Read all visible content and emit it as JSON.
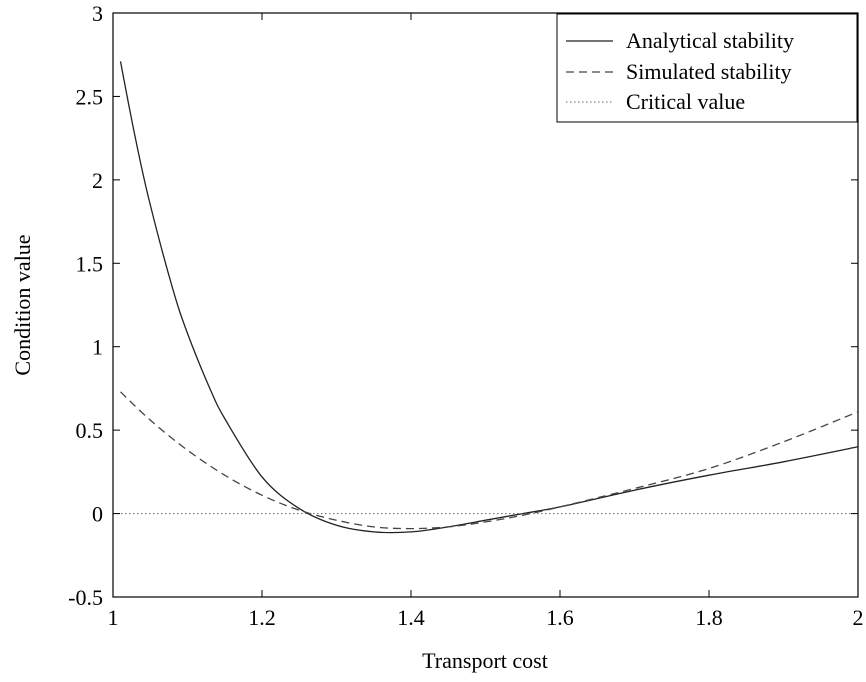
{
  "chart_data": {
    "type": "line",
    "xlabel": "Transport cost",
    "ylabel": "Condition value",
    "xlim": [
      1,
      2
    ],
    "ylim": [
      -0.5,
      3
    ],
    "xticks": [
      1,
      1.2,
      1.4,
      1.6,
      1.8,
      2
    ],
    "xtick_labels": [
      "1",
      "1.2",
      "1.4",
      "1.6",
      "1.8",
      "2"
    ],
    "yticks": [
      -0.5,
      0,
      0.5,
      1,
      1.5,
      2,
      2.5,
      3
    ],
    "ytick_labels": [
      "-0.5",
      "0",
      "0.5",
      "1",
      "1.5",
      "2",
      "2.5",
      "3"
    ],
    "grid": false,
    "legend_position": "top-right",
    "series": [
      {
        "name": "Analytical stability",
        "line_style": "solid",
        "color": "#222222",
        "x": [
          1.01,
          1.03,
          1.05,
          1.08,
          1.1,
          1.13,
          1.15,
          1.2,
          1.25,
          1.3,
          1.35,
          1.4,
          1.45,
          1.5,
          1.55,
          1.6,
          1.7,
          1.8,
          1.9,
          2.0
        ],
        "y": [
          2.71,
          2.25,
          1.85,
          1.35,
          1.08,
          0.75,
          0.57,
          0.22,
          0.03,
          -0.07,
          -0.11,
          -0.11,
          -0.08,
          -0.04,
          0.0,
          0.04,
          0.14,
          0.23,
          0.31,
          0.4
        ]
      },
      {
        "name": "Simulated stability",
        "line_style": "dashed",
        "color": "#444444",
        "x": [
          1.01,
          1.05,
          1.1,
          1.15,
          1.2,
          1.25,
          1.3,
          1.35,
          1.4,
          1.45,
          1.5,
          1.55,
          1.6,
          1.7,
          1.8,
          1.9,
          2.0
        ],
        "y": [
          0.73,
          0.56,
          0.38,
          0.23,
          0.11,
          0.02,
          -0.04,
          -0.08,
          -0.09,
          -0.08,
          -0.05,
          -0.01,
          0.04,
          0.15,
          0.27,
          0.43,
          0.61
        ]
      },
      {
        "name": "Critical value",
        "line_style": "dotted",
        "color": "#666666",
        "x": [
          1,
          2
        ],
        "y": [
          0,
          0
        ]
      }
    ]
  }
}
